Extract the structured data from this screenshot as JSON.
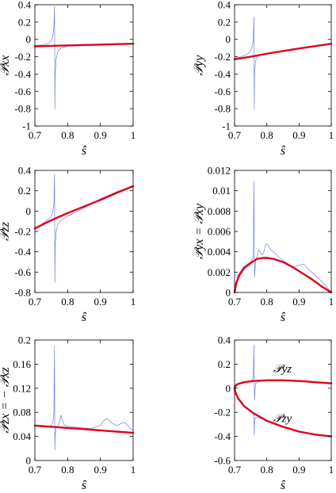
{
  "colors": {
    "thin_line": "#6f7fe0",
    "thick_line": "#e0001c",
    "axis": "#000000"
  },
  "chart_data": [
    {
      "type": "line",
      "xlabel": "ŝ",
      "ylabel": "𝒫xx",
      "xlim": [
        0.7,
        1.0
      ],
      "ylim": [
        -1.0,
        0.4
      ],
      "xticks": [
        "0.7",
        "0.8",
        "0.9",
        "1"
      ],
      "yticks": [
        "0.4",
        "0.2",
        "0",
        "-0.2",
        "-0.4",
        "-0.6",
        "-0.8",
        "-1"
      ],
      "series": [
        {
          "style": "thin",
          "x": [
            0.7,
            0.72,
            0.74,
            0.75,
            0.755,
            0.758,
            0.76,
            0.7605,
            0.761,
            0.762,
            0.765,
            0.77,
            0.78,
            0.8,
            0.85,
            0.9,
            0.95,
            1.0
          ],
          "y": [
            -0.07,
            -0.065,
            -0.05,
            -0.02,
            0.04,
            0.15,
            0.38,
            0.0,
            -0.8,
            -0.4,
            -0.22,
            -0.14,
            -0.1,
            -0.08,
            -0.07,
            -0.06,
            -0.055,
            -0.05
          ]
        },
        {
          "style": "thick",
          "x": [
            0.7,
            0.75,
            0.8,
            0.85,
            0.9,
            0.95,
            1.0
          ],
          "y": [
            -0.08,
            -0.075,
            -0.07,
            -0.065,
            -0.06,
            -0.055,
            -0.05
          ]
        }
      ]
    },
    {
      "type": "line",
      "xlabel": "ŝ",
      "ylabel": "𝒫yy",
      "xlim": [
        0.7,
        1.0
      ],
      "ylim": [
        -1.0,
        0.4
      ],
      "xticks": [
        "0.7",
        "0.8",
        "0.9",
        "1"
      ],
      "yticks": [
        "0.4",
        "0.2",
        "0",
        "-0.2",
        "-0.4",
        "-0.6",
        "-0.8",
        "-1"
      ],
      "series": [
        {
          "style": "thin",
          "x": [
            0.7,
            0.72,
            0.74,
            0.75,
            0.755,
            0.758,
            0.76,
            0.7605,
            0.761,
            0.762,
            0.765,
            0.77,
            0.78,
            0.8,
            0.85,
            0.9,
            0.95,
            1.0
          ],
          "y": [
            -0.22,
            -0.2,
            -0.17,
            -0.13,
            -0.08,
            0.0,
            0.26,
            -0.2,
            -0.8,
            -0.4,
            -0.25,
            -0.2,
            -0.18,
            -0.16,
            -0.13,
            -0.1,
            -0.075,
            -0.05
          ]
        },
        {
          "style": "thick",
          "x": [
            0.7,
            0.75,
            0.8,
            0.85,
            0.9,
            0.95,
            1.0
          ],
          "y": [
            -0.23,
            -0.2,
            -0.165,
            -0.135,
            -0.105,
            -0.078,
            -0.05
          ]
        }
      ]
    },
    {
      "type": "line",
      "xlabel": "ŝ",
      "ylabel": "𝒫zz",
      "xlim": [
        0.7,
        1.0
      ],
      "ylim": [
        -0.8,
        0.4
      ],
      "xticks": [
        "0.7",
        "0.8",
        "0.9",
        "1"
      ],
      "yticks": [
        "0.4",
        "0.2",
        "0",
        "-0.2",
        "-0.4",
        "-0.6",
        "-0.8"
      ],
      "series": [
        {
          "style": "thin",
          "x": [
            0.7,
            0.72,
            0.74,
            0.75,
            0.755,
            0.758,
            0.76,
            0.7605,
            0.761,
            0.762,
            0.765,
            0.77,
            0.78,
            0.8,
            0.85,
            0.9,
            0.95,
            1.0
          ],
          "y": [
            -0.17,
            -0.13,
            -0.08,
            -0.05,
            0.0,
            0.08,
            0.36,
            0.0,
            -0.7,
            -0.35,
            -0.2,
            -0.13,
            -0.09,
            -0.05,
            0.03,
            0.12,
            0.19,
            0.25
          ]
        },
        {
          "style": "thick",
          "x": [
            0.7,
            0.75,
            0.8,
            0.85,
            0.9,
            0.95,
            1.0
          ],
          "y": [
            -0.17,
            -0.09,
            -0.02,
            0.045,
            0.11,
            0.18,
            0.245
          ]
        }
      ]
    },
    {
      "type": "line",
      "xlabel": "ŝ",
      "ylabel": "𝒫yx = 𝒫xy",
      "xlim": [
        0.7,
        1.0
      ],
      "ylim": [
        0,
        0.012
      ],
      "xticks": [
        "0.7",
        "0.8",
        "0.9",
        "1"
      ],
      "yticks": [
        "0.012",
        "0.01",
        "0.008",
        "0.006",
        "0.004",
        "0.002",
        "0"
      ],
      "series": [
        {
          "style": "thin",
          "x": [
            0.7,
            0.71,
            0.73,
            0.75,
            0.758,
            0.76,
            0.761,
            0.762,
            0.765,
            0.775,
            0.785,
            0.79,
            0.795,
            0.8,
            0.81,
            0.84,
            0.88,
            0.905,
            0.915,
            0.925,
            0.95,
            0.97,
            0.99,
            1.0
          ],
          "y": [
            0.0,
            0.0017,
            0.0026,
            0.003,
            0.0034,
            0.0109,
            0.006,
            0.0015,
            0.003,
            0.0042,
            0.0037,
            0.0039,
            0.0046,
            0.0048,
            0.0043,
            0.0034,
            0.0025,
            0.0027,
            0.0028,
            0.0024,
            0.0017,
            0.0011,
            0.0004,
            0.0
          ]
        },
        {
          "style": "thick",
          "x": [
            0.7,
            0.705,
            0.715,
            0.73,
            0.75,
            0.77,
            0.79,
            0.8,
            0.82,
            0.85,
            0.88,
            0.91,
            0.94,
            0.97,
            1.0
          ],
          "y": [
            0.0,
            0.0009,
            0.0017,
            0.0024,
            0.0029,
            0.0033,
            0.0034,
            0.0034,
            0.0033,
            0.003,
            0.0025,
            0.0019,
            0.0013,
            0.0006,
            0.0
          ]
        }
      ]
    },
    {
      "type": "line",
      "xlabel": "ŝ",
      "ylabel": "𝒫zx = − 𝒫xz",
      "xlim": [
        0.7,
        1.0
      ],
      "ylim": [
        0,
        0.2
      ],
      "xticks": [
        "0.7",
        "0.8",
        "0.9",
        "1"
      ],
      "yticks": [
        "0.2",
        "0.16",
        "0.12",
        "0.08",
        "0.04",
        "0"
      ],
      "series": [
        {
          "style": "thin",
          "x": [
            0.7,
            0.72,
            0.74,
            0.75,
            0.755,
            0.758,
            0.76,
            0.7605,
            0.761,
            0.762,
            0.765,
            0.77,
            0.775,
            0.78,
            0.785,
            0.79,
            0.8,
            0.83,
            0.87,
            0.9,
            0.91,
            0.92,
            0.935,
            0.95,
            0.965,
            0.975,
            0.99,
            1.0
          ],
          "y": [
            0.057,
            0.056,
            0.056,
            0.058,
            0.063,
            0.08,
            0.19,
            0.08,
            0.018,
            0.04,
            0.055,
            0.058,
            0.063,
            0.075,
            0.065,
            0.059,
            0.057,
            0.055,
            0.053,
            0.058,
            0.066,
            0.07,
            0.062,
            0.058,
            0.062,
            0.063,
            0.054,
            0.05
          ]
        },
        {
          "style": "thick",
          "x": [
            0.7,
            0.75,
            0.8,
            0.85,
            0.9,
            0.95,
            1.0
          ],
          "y": [
            0.058,
            0.056,
            0.054,
            0.052,
            0.05,
            0.048,
            0.046
          ]
        }
      ]
    },
    {
      "type": "line",
      "xlabel": "ŝ",
      "ylabel": "",
      "xlim": [
        0.7,
        1.0
      ],
      "ylim": [
        -0.6,
        0.4
      ],
      "xticks": [
        "0.7",
        "0.8",
        "0.9",
        "1"
      ],
      "yticks": [
        "0.4",
        "0.2",
        "0",
        "-0.2",
        "-0.4",
        "-0.6"
      ],
      "annotations": [
        {
          "text": "𝒫yz",
          "x": 0.82,
          "y": 0.13
        },
        {
          "text": "𝒫zy",
          "x": 0.82,
          "y": -0.28
        }
      ],
      "series": [
        {
          "style": "thin",
          "x": [
            0.7,
            0.71,
            0.73,
            0.75,
            0.758,
            0.76,
            0.761,
            0.762,
            0.765,
            0.78,
            0.8,
            0.85,
            0.9,
            0.95,
            1.0
          ],
          "y": [
            0.0,
            0.03,
            0.045,
            0.055,
            0.08,
            0.36,
            0.05,
            -0.1,
            0.04,
            0.06,
            0.07,
            0.068,
            0.06,
            0.05,
            0.04
          ]
        },
        {
          "style": "thin",
          "x": [
            0.7,
            0.71,
            0.73,
            0.75,
            0.758,
            0.76,
            0.761,
            0.762,
            0.765,
            0.78,
            0.8,
            0.85,
            0.9,
            0.95,
            1.0
          ],
          "y": [
            0.0,
            -0.08,
            -0.15,
            -0.19,
            -0.2,
            -0.25,
            -0.39,
            -0.28,
            -0.24,
            -0.25,
            -0.27,
            -0.32,
            -0.36,
            -0.38,
            -0.4
          ]
        },
        {
          "style": "thick",
          "x": [
            0.7,
            0.702,
            0.71,
            0.73,
            0.76,
            0.8,
            0.85,
            0.9,
            0.95,
            1.0
          ],
          "y": [
            0.0,
            0.02,
            0.035,
            0.05,
            0.06,
            0.066,
            0.066,
            0.06,
            0.05,
            0.04
          ]
        },
        {
          "style": "thick",
          "x": [
            0.7,
            0.702,
            0.71,
            0.73,
            0.76,
            0.8,
            0.85,
            0.9,
            0.95,
            1.0
          ],
          "y": [
            0.0,
            -0.03,
            -0.08,
            -0.15,
            -0.21,
            -0.27,
            -0.32,
            -0.36,
            -0.385,
            -0.4
          ]
        }
      ]
    }
  ]
}
